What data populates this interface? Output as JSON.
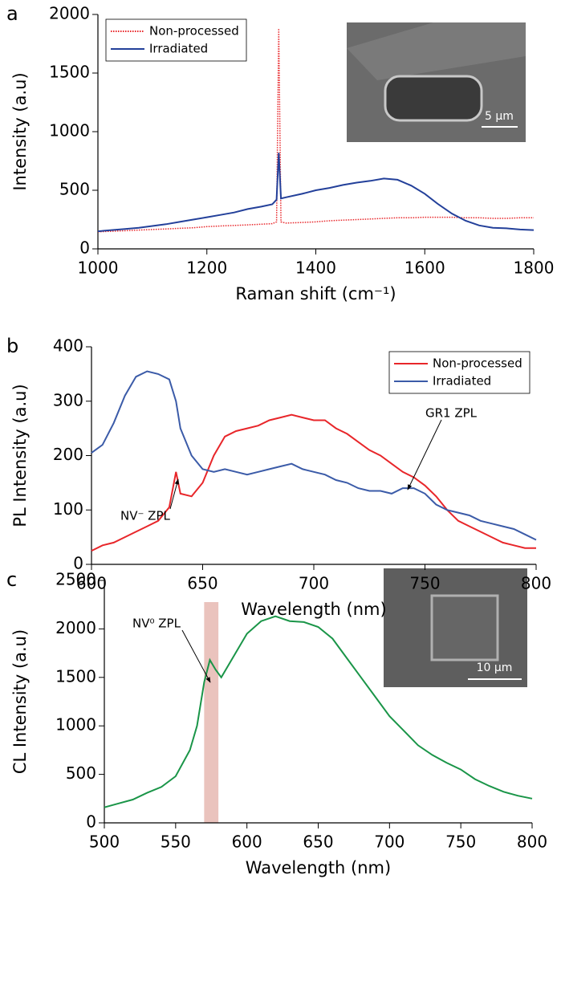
{
  "chart_data": [
    {
      "type": "line",
      "panel_label": "a",
      "x_label": "Raman shift (cm⁻¹)",
      "y_label": "Intensity (a.u)",
      "xlim": [
        1000,
        1800
      ],
      "ylim": [
        0,
        2000
      ],
      "xticks": [
        1000,
        1200,
        1400,
        1600,
        1800
      ],
      "yticks": [
        0,
        500,
        1000,
        1500,
        2000
      ],
      "legend": "upper left",
      "inset_scale_bar": "5 µm",
      "x": [
        1000,
        1025,
        1050,
        1075,
        1100,
        1125,
        1150,
        1175,
        1200,
        1225,
        1250,
        1275,
        1300,
        1320,
        1328,
        1332,
        1336,
        1345,
        1375,
        1400,
        1425,
        1450,
        1475,
        1500,
        1525,
        1550,
        1575,
        1600,
        1625,
        1650,
        1675,
        1700,
        1725,
        1750,
        1775,
        1800
      ],
      "series": [
        {
          "name": "Non-processed",
          "color": "#e8262a",
          "line_style": "dotted",
          "values": [
            145,
            150,
            155,
            160,
            165,
            170,
            175,
            180,
            190,
            195,
            200,
            205,
            210,
            215,
            230,
            1880,
            230,
            220,
            225,
            230,
            240,
            245,
            250,
            255,
            260,
            265,
            265,
            270,
            270,
            270,
            265,
            265,
            260,
            260,
            265,
            265
          ]
        },
        {
          "name": "Irradiated",
          "color": "#23409a",
          "line_style": "solid",
          "values": [
            150,
            160,
            170,
            180,
            195,
            210,
            230,
            250,
            270,
            290,
            310,
            340,
            360,
            380,
            420,
            820,
            430,
            440,
            470,
            500,
            520,
            545,
            565,
            580,
            600,
            590,
            540,
            470,
            380,
            300,
            240,
            200,
            180,
            175,
            165,
            160
          ]
        }
      ]
    },
    {
      "type": "line",
      "panel_label": "b",
      "x_label": "Wavelength (nm)",
      "y_label": "PL Intensity (a.u)",
      "xlim": [
        600,
        800
      ],
      "ylim": [
        0,
        400
      ],
      "xticks": [
        600,
        650,
        700,
        750,
        800
      ],
      "yticks": [
        0,
        100,
        200,
        300,
        400
      ],
      "legend": "upper right",
      "annotations": [
        "NV⁻ ZPL",
        "GR1 ZPL"
      ],
      "x": [
        600,
        605,
        610,
        615,
        620,
        625,
        630,
        635,
        638,
        640,
        645,
        650,
        655,
        660,
        665,
        670,
        675,
        680,
        685,
        690,
        695,
        700,
        705,
        710,
        715,
        720,
        725,
        730,
        735,
        740,
        745,
        750,
        755,
        760,
        765,
        770,
        775,
        780,
        785,
        790,
        795,
        800
      ],
      "series": [
        {
          "name": "Non-processed",
          "color": "#e8262a",
          "line_style": "solid",
          "values": [
            25,
            35,
            40,
            50,
            60,
            70,
            80,
            105,
            170,
            130,
            125,
            150,
            200,
            235,
            245,
            250,
            255,
            265,
            270,
            275,
            270,
            265,
            265,
            250,
            240,
            225,
            210,
            200,
            185,
            170,
            160,
            145,
            125,
            100,
            80,
            70,
            60,
            50,
            40,
            35,
            30,
            30
          ]
        },
        {
          "name": "Irradiated",
          "color": "#3b5ba8",
          "line_style": "solid",
          "values": [
            205,
            220,
            260,
            310,
            345,
            355,
            350,
            340,
            300,
            250,
            200,
            175,
            170,
            175,
            170,
            165,
            170,
            175,
            180,
            185,
            175,
            170,
            165,
            155,
            150,
            140,
            135,
            135,
            130,
            140,
            140,
            130,
            110,
            100,
            95,
            90,
            80,
            75,
            70,
            65,
            55,
            45
          ]
        }
      ]
    },
    {
      "type": "line",
      "panel_label": "c",
      "x_label": "Wavelength (nm)",
      "y_label": "CL Intensity (a.u)",
      "xlim": [
        500,
        800
      ],
      "ylim": [
        0,
        2500
      ],
      "xticks": [
        500,
        550,
        600,
        650,
        700,
        750,
        800
      ],
      "yticks": [
        0,
        500,
        1000,
        1500,
        2000,
        2500
      ],
      "highlight_range": [
        570,
        580
      ],
      "highlight_color": "#eac3bd",
      "annotations": [
        "NV⁰ ZPL"
      ],
      "inset_scale_bar": "10 µm",
      "x": [
        500,
        510,
        520,
        530,
        540,
        550,
        560,
        565,
        570,
        574,
        578,
        582,
        590,
        600,
        610,
        620,
        630,
        640,
        650,
        660,
        670,
        680,
        690,
        700,
        710,
        720,
        730,
        740,
        750,
        760,
        770,
        780,
        790,
        800
      ],
      "series": [
        {
          "color": "#1a9548",
          "line_style": "solid",
          "values": [
            160,
            200,
            240,
            310,
            370,
            480,
            750,
            1000,
            1450,
            1680,
            1580,
            1500,
            1700,
            1950,
            2080,
            2130,
            2080,
            2070,
            2020,
            1900,
            1700,
            1500,
            1300,
            1100,
            950,
            800,
            700,
            620,
            550,
            450,
            380,
            320,
            280,
            250
          ]
        }
      ]
    }
  ]
}
